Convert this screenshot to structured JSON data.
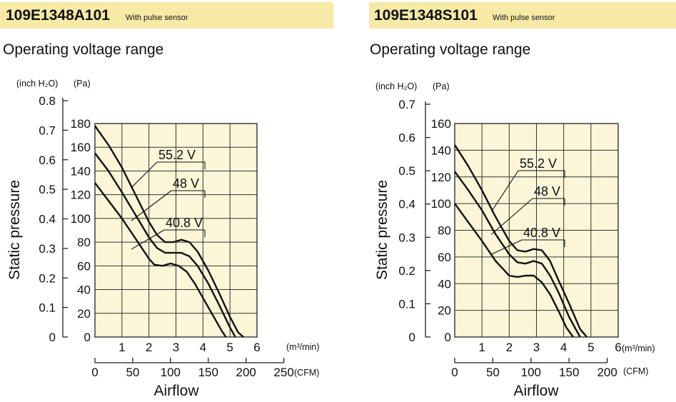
{
  "chart_data": [
    {
      "type": "line",
      "model": "109E1348A101",
      "model_note": "With pulse sensor",
      "title": "Operating voltage range",
      "xlabel": "Airflow",
      "ylabel": "Static pressure",
      "x_unit_primary": "(m³/min)",
      "x_unit_secondary": "(CFM)",
      "y_unit_primary": "(Pa)",
      "y_unit_secondary": "(inch H₂O)",
      "xlim": [
        0,
        6
      ],
      "ylim": [
        0,
        180
      ],
      "x_ticks": [
        1,
        2,
        3,
        4,
        5,
        6
      ],
      "x_tick_labels": [
        "1",
        "2",
        "3",
        "4",
        "5",
        "6"
      ],
      "y_ticks": [
        0,
        20,
        40,
        60,
        80,
        100,
        120,
        140,
        160,
        180
      ],
      "y_tick_labels": [
        "0",
        "20",
        "40",
        "60",
        "80",
        "100",
        "120",
        "140",
        "160",
        "180"
      ],
      "cfm_ticks": [
        0,
        50,
        100,
        150,
        200,
        250
      ],
      "cfm_tick_labels": [
        "0",
        "50",
        "100",
        "150",
        "200",
        "250"
      ],
      "inch_ticks": [
        0,
        0.1,
        0.2,
        0.3,
        0.4,
        0.5,
        0.6,
        0.7,
        0.8
      ],
      "inch_tick_labels": [
        "0",
        "0.1",
        "0.2",
        "0.3",
        "0.4",
        "0.5",
        "0.6",
        "0.7",
        "0.8"
      ],
      "grid": true,
      "series": [
        {
          "name": "55.2 V",
          "x": [
            0,
            0.5,
            1.0,
            1.5,
            2.0,
            2.3,
            2.6,
            2.9,
            3.2,
            3.5,
            3.8,
            4.2,
            4.6,
            5.0,
            5.3,
            5.5
          ],
          "y": [
            178,
            162,
            143,
            120,
            97,
            86,
            80,
            80,
            82,
            80,
            72,
            56,
            37,
            17,
            4,
            0
          ]
        },
        {
          "name": "48 V",
          "x": [
            0,
            0.5,
            1.0,
            1.5,
            2.0,
            2.3,
            2.6,
            2.9,
            3.2,
            3.5,
            3.8,
            4.2,
            4.6,
            5.0,
            5.2
          ],
          "y": [
            155,
            140,
            122,
            103,
            84,
            75,
            71,
            71,
            71,
            68,
            60,
            45,
            27,
            8,
            0
          ]
        },
        {
          "name": "40.8 V",
          "x": [
            0,
            0.5,
            1.0,
            1.5,
            2.0,
            2.2,
            2.5,
            2.8,
            3.1,
            3.4,
            3.7,
            4.0,
            4.4,
            4.7,
            4.85
          ],
          "y": [
            130,
            115,
            100,
            83,
            66,
            61,
            60,
            62,
            60,
            55,
            45,
            33,
            17,
            5,
            0
          ]
        }
      ]
    },
    {
      "type": "line",
      "model": "109E1348S101",
      "model_note": "With pulse sensor",
      "title": "Operating voltage range",
      "xlabel": "Airflow",
      "ylabel": "Static pressure",
      "x_unit_primary": "(m³/min)",
      "x_unit_secondary": "(CFM)",
      "y_unit_primary": "(Pa)",
      "y_unit_secondary": "(inch H₂O)",
      "xlim": [
        0,
        6
      ],
      "ylim": [
        0,
        160
      ],
      "x_ticks": [
        1,
        2,
        3,
        4,
        5,
        6
      ],
      "x_tick_labels": [
        "1",
        "2",
        "3",
        "4",
        "5",
        "6"
      ],
      "y_ticks": [
        0,
        20,
        40,
        60,
        80,
        100,
        120,
        140,
        160
      ],
      "y_tick_labels": [
        "0",
        "20",
        "40",
        "60",
        "80",
        "100",
        "120",
        "140",
        "160"
      ],
      "cfm_ticks": [
        0,
        50,
        100,
        150,
        200
      ],
      "cfm_tick_labels": [
        "0",
        "50",
        "100",
        "150",
        "200"
      ],
      "inch_ticks": [
        0,
        0.1,
        0.2,
        0.3,
        0.4,
        0.5,
        0.6,
        0.7
      ],
      "inch_tick_labels": [
        "0",
        "0.1",
        "0.2",
        "0.3",
        "0.4",
        "0.5",
        "0.6",
        "0.7"
      ],
      "grid": true,
      "series": [
        {
          "name": "55.2 V",
          "x": [
            0,
            0.5,
            1.0,
            1.5,
            2.0,
            2.3,
            2.6,
            2.9,
            3.2,
            3.5,
            3.8,
            4.2,
            4.6,
            4.85
          ],
          "y": [
            144,
            128,
            110,
            90,
            72,
            65,
            64,
            66,
            65,
            57,
            43,
            25,
            6,
            0
          ]
        },
        {
          "name": "48 V",
          "x": [
            0,
            0.5,
            1.0,
            1.5,
            2.0,
            2.3,
            2.6,
            2.9,
            3.2,
            3.5,
            3.8,
            4.2,
            4.6
          ],
          "y": [
            124,
            110,
            95,
            77,
            62,
            56,
            55,
            57,
            55,
            46,
            34,
            15,
            0
          ]
        },
        {
          "name": "40.8 V",
          "x": [
            0,
            0.5,
            1.0,
            1.5,
            2.0,
            2.3,
            2.6,
            2.9,
            3.2,
            3.5,
            3.8,
            4.1,
            4.35
          ],
          "y": [
            100,
            86,
            72,
            57,
            46,
            45,
            46,
            46,
            41,
            32,
            20,
            7,
            0
          ]
        }
      ]
    }
  ]
}
